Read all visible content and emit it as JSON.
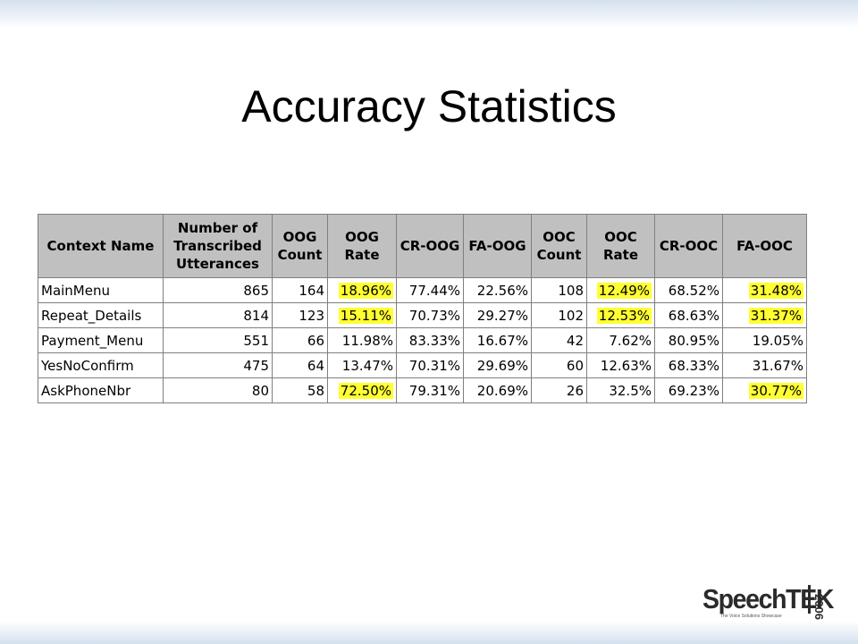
{
  "slide": {
    "title": "Accuracy Statistics"
  },
  "table": {
    "headers": [
      "Context Name",
      "Number of Transcribed Utterances",
      "OOG Count",
      "OOG Rate",
      "CR-OOG",
      "FA-OOG",
      "OOC Count",
      "OOC Rate",
      "CR-OOC",
      "FA-OOC"
    ],
    "rows": [
      [
        "MainMenu",
        "865",
        "164",
        "18.96%",
        "77.44%",
        "22.56%",
        "108",
        "12.49%",
        "68.52%",
        "31.48%"
      ],
      [
        "Repeat_Details",
        "814",
        "123",
        "15.11%",
        "70.73%",
        "29.27%",
        "102",
        "12.53%",
        "68.63%",
        "31.37%"
      ],
      [
        "Payment_Menu",
        "551",
        "66",
        "11.98%",
        "83.33%",
        "16.67%",
        "42",
        "7.62%",
        "80.95%",
        "19.05%"
      ],
      [
        "YesNoConfirm",
        "475",
        "64",
        "13.47%",
        "70.31%",
        "29.69%",
        "60",
        "12.63%",
        "68.33%",
        "31.67%"
      ],
      [
        "AskPhoneNbr",
        "80",
        "58",
        "72.50%",
        "79.31%",
        "20.69%",
        "26",
        "32.5%",
        "69.23%",
        "30.77%"
      ]
    ],
    "highlight_color": "#ffff33",
    "header_bg": "#c0c0c0"
  },
  "logo": {
    "name": "SpeechTEK",
    "year": "2006",
    "tagline": "The Voice Solutions Showcase"
  }
}
